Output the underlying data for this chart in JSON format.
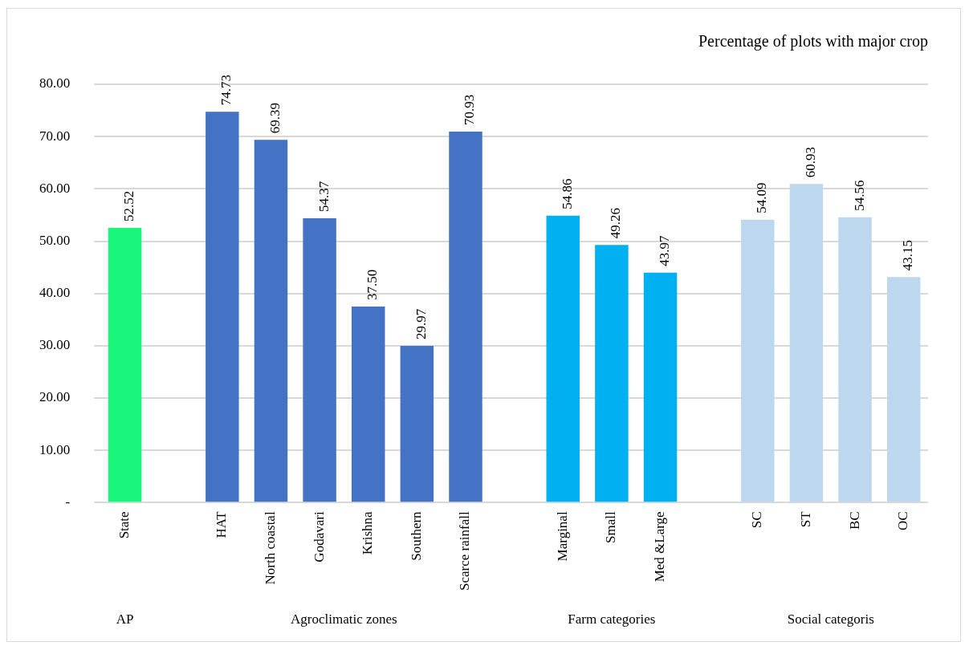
{
  "chart_data": {
    "type": "bar",
    "title": "Percentage of plots with major crop",
    "categories": [
      "State",
      null,
      "HAT",
      "North coastal",
      "Godavari",
      "Krishna",
      "Southern",
      "Scarce rainfall",
      null,
      "Marginal",
      "Small",
      "Med &Large",
      null,
      "SC",
      "ST",
      "BC",
      "OC"
    ],
    "values": [
      52.52,
      null,
      74.73,
      69.39,
      54.37,
      37.5,
      29.97,
      70.93,
      null,
      54.86,
      49.26,
      43.97,
      null,
      54.09,
      60.93,
      54.56,
      43.15
    ],
    "value_labels": [
      "52.52",
      null,
      "74.73",
      "69.39",
      "54.37",
      "37.50",
      "29.97",
      "70.93",
      null,
      "54.86",
      "49.26",
      "43.97",
      null,
      "54.09",
      "60.93",
      "54.56",
      "43.15"
    ],
    "colors": [
      "#17f57a",
      null,
      "#4472c4",
      "#4472c4",
      "#4472c4",
      "#4472c4",
      "#4472c4",
      "#4472c4",
      null,
      "#00b0f0",
      "#00b0f0",
      "#00b0f0",
      null,
      "#bdd7ee",
      "#bdd7ee",
      "#bdd7ee",
      "#bdd7ee"
    ],
    "ylim": [
      0,
      80
    ],
    "yticks": [
      {
        "value": 0,
        "label": "-"
      },
      {
        "value": 10,
        "label": "10.00"
      },
      {
        "value": 20,
        "label": "20.00"
      },
      {
        "value": 30,
        "label": "30.00"
      },
      {
        "value": 40,
        "label": "40.00"
      },
      {
        "value": 50,
        "label": "50.00"
      },
      {
        "value": 60,
        "label": "60.00"
      },
      {
        "value": 70,
        "label": "70.00"
      },
      {
        "value": 80,
        "label": "80.00"
      }
    ],
    "grid": "y",
    "legend": false,
    "annotations": [
      "AP",
      "Agroclimatic zones",
      "Farm categories",
      "Social categoris"
    ]
  }
}
